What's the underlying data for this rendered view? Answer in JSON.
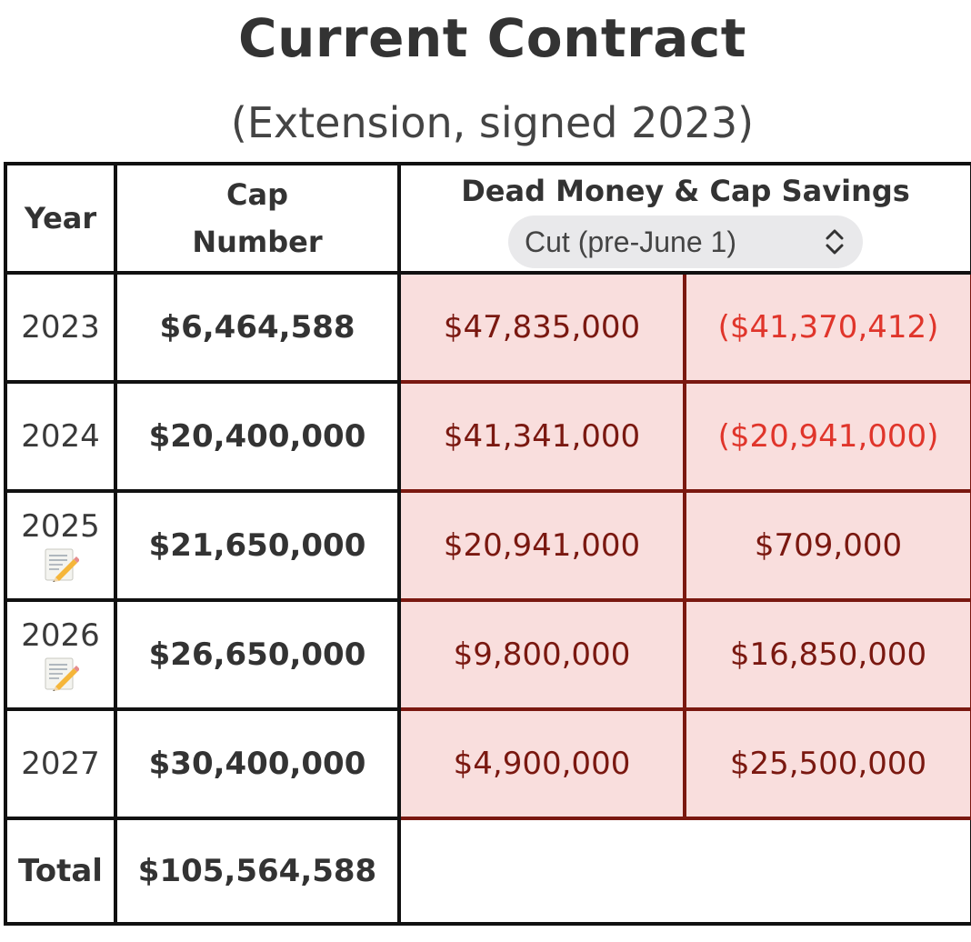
{
  "title": "Current Contract",
  "subtitle": "(Extension, signed 2023)",
  "table": {
    "headers": {
      "year": "Year",
      "cap_number": "Cap Number",
      "dead_money_cap_savings": "Dead Money & Cap Savings"
    },
    "scenario_select": {
      "selected": "Cut (pre-June 1)",
      "icon": "up-down-chevron-icon"
    },
    "rows": [
      {
        "year": "2023",
        "cap_number": "$6,464,588",
        "dead_money": "$47,835,000",
        "cap_savings": "($41,370,412)",
        "memo": false
      },
      {
        "year": "2024",
        "cap_number": "$20,400,000",
        "dead_money": "$41,341,000",
        "cap_savings": "($20,941,000)",
        "memo": false
      },
      {
        "year": "2025",
        "cap_number": "$21,650,000",
        "dead_money": "$20,941,000",
        "cap_savings": "$709,000",
        "memo": true
      },
      {
        "year": "2026",
        "cap_number": "$26,650,000",
        "dead_money": "$9,800,000",
        "cap_savings": "$16,850,000",
        "memo": true
      },
      {
        "year": "2027",
        "cap_number": "$30,400,000",
        "dead_money": "$4,900,000",
        "cap_savings": "$25,500,000",
        "memo": false
      }
    ],
    "total": {
      "label": "Total",
      "cap_number": "$105,564,588"
    }
  },
  "colors": {
    "cell_background": "#f9dedd",
    "cell_border": "#7a1810",
    "dead_money_text": "#7a1810",
    "negative_savings_text": "#e0352b",
    "select_background": "#e9e9eb"
  }
}
